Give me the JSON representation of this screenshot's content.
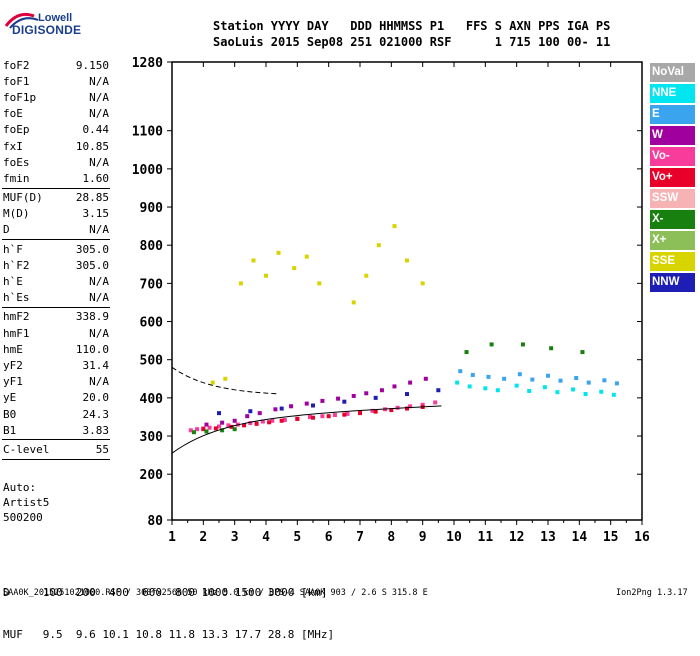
{
  "logo": {
    "top": "Lowell",
    "bottom": "DIGISONDE"
  },
  "header": {
    "line1": "Station YYYY DAY   DDD HHMMSS P1   FFS S AXN PPS IGA PS",
    "line2": "SaoLuis 2015 Sep08 251 021000 RSF      1 715 100 00- 11"
  },
  "params": [
    [
      {
        "name": "foF2",
        "value": "9.150"
      },
      {
        "name": "foF1",
        "value": "N/A"
      },
      {
        "name": "foF1p",
        "value": "N/A"
      },
      {
        "name": "foE",
        "value": "N/A"
      },
      {
        "name": "foEp",
        "value": "0.44"
      },
      {
        "name": "fxI",
        "value": "10.85"
      },
      {
        "name": "foEs",
        "value": "N/A"
      },
      {
        "name": "fmin",
        "value": "1.60"
      }
    ],
    [
      {
        "name": "MUF(D)",
        "value": "28.85"
      },
      {
        "name": "M(D)",
        "value": "3.15"
      },
      {
        "name": "D",
        "value": "N/A"
      }
    ],
    [
      {
        "name": "h`F",
        "value": "305.0"
      },
      {
        "name": "h`F2",
        "value": "305.0"
      },
      {
        "name": "h`E",
        "value": "N/A"
      },
      {
        "name": "h`Es",
        "value": "N/A"
      }
    ],
    [
      {
        "name": "hmF2",
        "value": "338.9"
      },
      {
        "name": "hmF1",
        "value": "N/A"
      },
      {
        "name": "hmE",
        "value": "110.0"
      },
      {
        "name": "yF2",
        "value": "31.4"
      },
      {
        "name": "yF1",
        "value": "N/A"
      },
      {
        "name": "yE",
        "value": "20.0"
      },
      {
        "name": "B0",
        "value": "24.3"
      },
      {
        "name": "B1",
        "value": "3.83"
      }
    ],
    [
      {
        "name": "C-level",
        "value": "55"
      }
    ]
  ],
  "auto": {
    "line1": "Auto:",
    "line2": "Artist5",
    "line3": "500200"
  },
  "legend": [
    {
      "label": "NoVal",
      "color": "#a8a8a8"
    },
    {
      "label": "NNE",
      "color": "#00e5f0"
    },
    {
      "label": "E",
      "color": "#3aa4ee"
    },
    {
      "label": "W",
      "color": "#a0009e"
    },
    {
      "label": "Vo-",
      "color": "#f83c9b"
    },
    {
      "label": "Vo+",
      "color": "#e8002a"
    },
    {
      "label": "SSW",
      "color": "#f7b3b3"
    },
    {
      "label": "X-",
      "color": "#17800e"
    },
    {
      "label": "X+",
      "color": "#8cbf57"
    },
    {
      "label": "SSE",
      "color": "#d8d400"
    },
    {
      "label": "NNW",
      "color": "#1e1eb4"
    }
  ],
  "bottom": {
    "d_line": "D     100  200  400  600  800 1000 1500 3000 [km]",
    "muf_line": "MUF   9.5  9.6 10.1 10.8 11.8 13.3 17.7 28.8 [MHz]"
  },
  "footer": {
    "left": "SAA0K_2015251021000.RSF / 300fx256h 50 kHz 5.0 km / DPS-4 SAA0K 903 / 2.6 S 315.8 E",
    "right": "Ion2Png 1.3.17"
  },
  "chart_data": {
    "type": "scatter",
    "xlabel": "",
    "ylabel": "",
    "xlim": [
      1,
      16
    ],
    "ylim": [
      80,
      1280
    ],
    "xticks": [
      1,
      2,
      3,
      4,
      5,
      6,
      7,
      8,
      9,
      10,
      11,
      12,
      13,
      14,
      15,
      16
    ],
    "yticks": [
      80,
      200,
      300,
      400,
      500,
      600,
      700,
      800,
      900,
      1000,
      1100,
      1280
    ],
    "grid": false,
    "legend_position": "right",
    "series": [
      {
        "name": "Vo-",
        "color": "#f83c9b",
        "x": [
          1.6,
          1.8,
          2.0,
          2.2,
          2.5,
          2.8,
          3.1,
          3.5,
          3.9,
          4.2,
          4.6,
          5.0,
          5.4,
          5.8,
          6.2,
          6.6,
          7.0,
          7.4,
          7.8,
          8.2,
          8.6,
          9.0,
          9.4
        ],
        "y": [
          315,
          318,
          320,
          322,
          325,
          328,
          330,
          334,
          338,
          340,
          342,
          345,
          350,
          352,
          355,
          358,
          362,
          366,
          370,
          374,
          378,
          382,
          388
        ]
      },
      {
        "name": "W",
        "color": "#a0009e",
        "x": [
          2.1,
          2.6,
          3.0,
          3.4,
          3.8,
          4.3,
          4.8,
          5.3,
          5.8,
          6.3,
          6.8,
          7.2,
          7.7,
          8.1,
          8.6,
          9.1
        ],
        "y": [
          330,
          335,
          340,
          352,
          360,
          370,
          378,
          385,
          392,
          398,
          405,
          412,
          420,
          430,
          440,
          450
        ]
      },
      {
        "name": "Vo+",
        "color": "#e8002a",
        "x": [
          2.0,
          2.4,
          2.9,
          3.3,
          3.7,
          4.1,
          4.5,
          5.0,
          5.5,
          6.0,
          6.5,
          7.0,
          7.5,
          8.0,
          8.5,
          9.0
        ],
        "y": [
          318,
          320,
          324,
          328,
          332,
          336,
          340,
          345,
          348,
          352,
          356,
          360,
          364,
          368,
          372,
          376
        ]
      },
      {
        "name": "SSE",
        "color": "#d8d400",
        "x": [
          2.3,
          2.7,
          3.2,
          3.6,
          4.0,
          4.4,
          4.9,
          5.3,
          5.7,
          6.8,
          7.2,
          7.6,
          8.1,
          8.5,
          9.0
        ],
        "y": [
          440,
          450,
          700,
          760,
          720,
          780,
          740,
          770,
          700,
          650,
          720,
          800,
          850,
          760,
          700
        ]
      },
      {
        "name": "E",
        "color": "#3aa4ee",
        "x": [
          10.2,
          10.6,
          11.1,
          11.6,
          12.1,
          12.5,
          13.0,
          13.4,
          13.9,
          14.3,
          14.8,
          15.2
        ],
        "y": [
          470,
          460,
          455,
          450,
          462,
          448,
          458,
          445,
          452,
          440,
          446,
          438
        ]
      },
      {
        "name": "NNE",
        "color": "#00e5f0",
        "x": [
          10.1,
          10.5,
          11.0,
          11.4,
          12.0,
          12.4,
          12.9,
          13.3,
          13.8,
          14.2,
          14.7,
          15.1
        ],
        "y": [
          440,
          430,
          425,
          420,
          432,
          418,
          428,
          415,
          422,
          410,
          416,
          408
        ]
      },
      {
        "name": "X-",
        "color": "#17800e",
        "x": [
          1.7,
          2.1,
          2.6,
          3.0,
          10.4,
          11.2,
          12.2,
          13.1,
          14.1
        ],
        "y": [
          310,
          312,
          315,
          318,
          520,
          540,
          540,
          530,
          520
        ]
      },
      {
        "name": "NNW",
        "color": "#1e1eb4",
        "x": [
          2.5,
          3.5,
          4.5,
          5.5,
          6.5,
          7.5,
          8.5,
          9.5
        ],
        "y": [
          360,
          365,
          372,
          380,
          390,
          400,
          410,
          420
        ]
      }
    ]
  }
}
